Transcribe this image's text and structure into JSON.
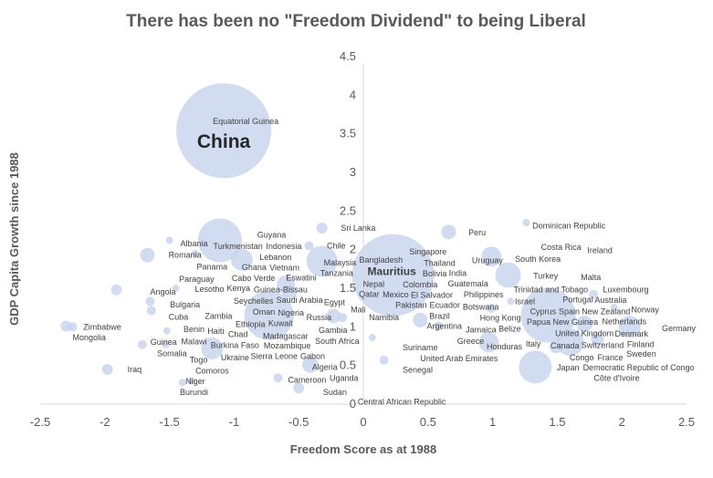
{
  "chart_data": {
    "type": "scatter",
    "subtype": "bubble",
    "title": "There has been no \"Freedom Dividend\" to being Liberal",
    "xlabel": "Freedom Score as at 1988",
    "ylabel": "GDP Capita Growth since 1988",
    "xlim": [
      -2.5,
      2.5
    ],
    "ylim": [
      0,
      4.5
    ],
    "xticks": [
      "-2.5",
      "-2",
      "-1.5",
      "-1",
      "-0.5",
      "0",
      "0.5",
      "1",
      "1.5",
      "2",
      "2.5"
    ],
    "yticks": [
      "0",
      "0.5",
      "1",
      "1.5",
      "2",
      "2.5",
      "3",
      "3.5",
      "4",
      "4.5"
    ],
    "grid": false,
    "colors": {
      "bubble": "#c5d3ee",
      "label": "#404040",
      "axis": "#d9d9d9"
    },
    "bubbles": [
      {
        "x": -1.08,
        "y": 3.54,
        "size": 2704
      },
      {
        "x": 0.23,
        "y": 1.67,
        "size": 2025
      },
      {
        "x": -1.11,
        "y": 2.12,
        "size": 576
      },
      {
        "x": -0.73,
        "y": 1.15,
        "size": 729
      },
      {
        "x": -0.32,
        "y": 1.85,
        "size": 289
      },
      {
        "x": 1.12,
        "y": 1.67,
        "size": 196
      },
      {
        "x": 1.33,
        "y": 0.48,
        "size": 324
      },
      {
        "x": 1.43,
        "y": 1.15,
        "size": 900
      },
      {
        "x": 1.6,
        "y": 0.8,
        "size": 225
      },
      {
        "x": 0.97,
        "y": 0.8,
        "size": 121
      },
      {
        "x": 0.66,
        "y": 2.23,
        "size": 64
      },
      {
        "x": 0.99,
        "y": 1.91,
        "size": 121
      },
      {
        "x": -1.67,
        "y": 1.93,
        "size": 64
      },
      {
        "x": -1.17,
        "y": 0.72,
        "size": 144
      },
      {
        "x": -0.32,
        "y": 2.28,
        "size": 36
      },
      {
        "x": -0.42,
        "y": 2.05,
        "size": 25
      },
      {
        "x": -1.91,
        "y": 1.48,
        "size": 36
      },
      {
        "x": -1.65,
        "y": 1.33,
        "size": 25
      },
      {
        "x": -1.64,
        "y": 1.21,
        "size": 25
      },
      {
        "x": -2.3,
        "y": 1.01,
        "size": 36
      },
      {
        "x": -2.25,
        "y": 1.0,
        "size": 25
      },
      {
        "x": -1.98,
        "y": 0.45,
        "size": 36
      },
      {
        "x": -1.71,
        "y": 0.77,
        "size": 25
      },
      {
        "x": -1.52,
        "y": 0.95,
        "size": 16
      },
      {
        "x": -1.53,
        "y": 0.77,
        "size": 16
      },
      {
        "x": -1.33,
        "y": 0.3,
        "size": 16
      },
      {
        "x": -1.4,
        "y": 0.28,
        "size": 16
      },
      {
        "x": -0.5,
        "y": 0.21,
        "size": 36
      },
      {
        "x": -0.66,
        "y": 0.34,
        "size": 25
      },
      {
        "x": -0.41,
        "y": 0.51,
        "size": 81
      },
      {
        "x": -0.57,
        "y": 1.45,
        "size": 64
      },
      {
        "x": -0.94,
        "y": 1.87,
        "size": 144
      },
      {
        "x": 0.44,
        "y": 1.09,
        "size": 64
      },
      {
        "x": 0.58,
        "y": 1.01,
        "size": 25
      },
      {
        "x": 0.16,
        "y": 0.57,
        "size": 25
      },
      {
        "x": 0.07,
        "y": 0.86,
        "size": 16
      },
      {
        "x": -0.16,
        "y": 1.12,
        "size": 25
      },
      {
        "x": 1.49,
        "y": 0.74,
        "size": 49
      },
      {
        "x": 1.81,
        "y": 0.84,
        "size": 49
      },
      {
        "x": 1.71,
        "y": 1.04,
        "size": 81
      },
      {
        "x": 1.78,
        "y": 1.42,
        "size": 25
      },
      {
        "x": 1.94,
        "y": 1.25,
        "size": 16
      },
      {
        "x": 1.26,
        "y": 2.35,
        "size": 16
      },
      {
        "x": 0.99,
        "y": 1.24,
        "size": 25
      },
      {
        "x": 2.06,
        "y": 1.0,
        "size": 144
      },
      {
        "x": 1.14,
        "y": 1.33,
        "size": 16
      },
      {
        "x": -0.23,
        "y": 1.14,
        "size": 64
      },
      {
        "x": -1.3,
        "y": 1.95,
        "size": 16
      },
      {
        "x": -1.5,
        "y": 2.12,
        "size": 16
      },
      {
        "x": -0.6,
        "y": 1.55,
        "size": 100
      },
      {
        "x": -1.45,
        "y": 1.5,
        "size": 16
      }
    ],
    "points": [
      {
        "label": "Equatorial Guinea",
        "x": -0.91,
        "y": 3.66
      },
      {
        "label": "China",
        "x": -1.08,
        "y": 3.4,
        "emphasis": "large"
      },
      {
        "label": "Albania",
        "x": -1.31,
        "y": 2.08
      },
      {
        "label": "Romania",
        "x": -1.38,
        "y": 1.93
      },
      {
        "label": "Panama",
        "x": -1.17,
        "y": 1.81
      },
      {
        "label": "Paraguay",
        "x": -1.29,
        "y": 1.69
      },
      {
        "label": "Angola",
        "x": -1.55,
        "y": 1.45
      },
      {
        "label": "Lesotho",
        "x": -1.19,
        "y": 1.49
      },
      {
        "label": "Bulgaria",
        "x": -1.38,
        "y": 1.29
      },
      {
        "label": "Cuba",
        "x": -1.43,
        "y": 1.2
      },
      {
        "label": "Zimbabwe",
        "x": -2.02,
        "y": 1.0
      },
      {
        "label": "Mongolia",
        "x": -2.12,
        "y": 0.9
      },
      {
        "label": "Benin",
        "x": -1.31,
        "y": 0.97
      },
      {
        "label": "Malawi",
        "x": -1.31,
        "y": 0.88
      },
      {
        "label": "Guinea",
        "x": -1.46,
        "y": 0.8
      },
      {
        "label": "Somalia",
        "x": -1.48,
        "y": 0.76
      },
      {
        "label": "Togo",
        "x": -1.33,
        "y": 0.57
      },
      {
        "label": "Iraq",
        "x": -1.77,
        "y": 0.45
      },
      {
        "label": "Comoros",
        "x": -1.17,
        "y": 0.43
      },
      {
        "label": "Niger",
        "x": -1.3,
        "y": 0.33
      },
      {
        "label": "Burundi",
        "x": -1.31,
        "y": 0.26
      },
      {
        "label": "Guyana",
        "x": -0.71,
        "y": 2.19
      },
      {
        "label": "Turkmenistan",
        "x": -0.97,
        "y": 2.08
      },
      {
        "label": "Indonesia",
        "x": -0.7,
        "y": 2.08
      },
      {
        "label": "Sri Lanka",
        "x": -0.04,
        "y": 2.28
      },
      {
        "label": "Chile",
        "x": -0.21,
        "y": 2.05
      },
      {
        "label": "Lebanon",
        "x": -0.68,
        "y": 1.9
      },
      {
        "label": "Vietnam",
        "x": -0.61,
        "y": 1.87
      },
      {
        "label": "Ghana",
        "x": -0.76,
        "y": 1.77
      },
      {
        "label": "Kenya",
        "x": -1.05,
        "y": 1.5
      },
      {
        "label": "Cabo Verde",
        "x": -0.85,
        "y": 1.49
      },
      {
        "label": "Guinea-Bissau",
        "x": -0.64,
        "y": 1.48
      },
      {
        "label": "Eswatini",
        "x": -0.48,
        "y": 1.53
      },
      {
        "label": "Tanzania",
        "x": -0.29,
        "y": 1.55
      },
      {
        "label": "Seychelles",
        "x": -0.85,
        "y": 1.37
      },
      {
        "label": "Saudi Arabia",
        "x": -0.55,
        "y": 1.38
      },
      {
        "label": "Egypt",
        "x": -0.28,
        "y": 1.35
      },
      {
        "label": "Nigeria",
        "x": -0.56,
        "y": 1.29
      },
      {
        "label": "Kuwait",
        "x": -0.64,
        "y": 1.22
      },
      {
        "label": "Oman",
        "x": -0.6,
        "y": 1.19
      },
      {
        "label": "Zambia",
        "x": -1.12,
        "y": 1.14
      },
      {
        "label": "Ethiopia",
        "x": -0.93,
        "y": 1.14
      },
      {
        "label": "Russia",
        "x": -0.4,
        "y": 1.12
      },
      {
        "label": "Chad",
        "x": -0.97,
        "y": 1.01
      },
      {
        "label": "Mali",
        "x": -0.04,
        "y": 1.22
      },
      {
        "label": "Burkina Faso",
        "x": -1.05,
        "y": 0.83
      },
      {
        "label": "Haiti",
        "x": -1.17,
        "y": 0.8
      },
      {
        "label": "Madagascar",
        "x": -0.8,
        "y": 0.88
      },
      {
        "label": "Mozambique",
        "x": -0.73,
        "y": 0.86
      },
      {
        "label": "Sierra Leone",
        "x": -0.69,
        "y": 0.76
      },
      {
        "label": "Ukraine",
        "x": -0.88,
        "y": 0.71
      },
      {
        "label": "South Africa",
        "x": -0.4,
        "y": 0.85
      },
      {
        "label": "Gambia",
        "x": -0.15,
        "y": 0.85
      },
      {
        "label": "Gabon",
        "x": -0.42,
        "y": 0.62
      },
      {
        "label": "Algeria",
        "x": -0.27,
        "y": 0.55
      },
      {
        "label": "Uganda",
        "x": -0.15,
        "y": 0.48
      },
      {
        "label": "Cameroon",
        "x": -0.35,
        "y": 0.31
      },
      {
        "label": "Sudan",
        "x": -0.22,
        "y": 0.19
      },
      {
        "label": "Central African Republic",
        "x": 0.1,
        "y": 0.03
      },
      {
        "label": "Peru",
        "x": 0.88,
        "y": 2.22
      },
      {
        "label": "Singapore",
        "x": 0.5,
        "y": 1.97
      },
      {
        "label": "Thailand",
        "x": 0.59,
        "y": 1.86
      },
      {
        "label": "Uruguay",
        "x": 0.96,
        "y": 1.86
      },
      {
        "label": "Bangladesh",
        "x": 0.08,
        "y": 1.83
      },
      {
        "label": "India",
        "x": 0.73,
        "y": 1.73
      },
      {
        "label": "Mauritius",
        "x": 0.22,
        "y": 1.72,
        "emphasis": "medium"
      },
      {
        "label": "Malaysia",
        "x": -0.04,
        "y": 1.69
      },
      {
        "label": "Nepal",
        "x": 0.08,
        "y": 1.66
      },
      {
        "label": "Colombia",
        "x": 0.44,
        "y": 1.69
      },
      {
        "label": "Qatar",
        "x": -0.04,
        "y": 1.6
      },
      {
        "label": "El Salvador",
        "x": 0.53,
        "y": 1.59
      },
      {
        "label": "Bolivia",
        "x": 0.58,
        "y": 1.62
      },
      {
        "label": "Guatemala",
        "x": 0.81,
        "y": 1.63
      },
      {
        "label": "Ecuador",
        "x": 0.63,
        "y": 1.53
      },
      {
        "label": "Philippines",
        "x": 0.93,
        "y": 1.56
      },
      {
        "label": "Mexico",
        "x": 0.25,
        "y": 1.45
      },
      {
        "label": "Pakistan",
        "x": 0.37,
        "y": 1.35
      },
      {
        "label": "Brazil",
        "x": 0.59,
        "y": 1.35
      },
      {
        "label": "Botswana",
        "x": 0.88,
        "y": 1.33
      },
      {
        "label": "Hong Kong",
        "x": 1.06,
        "y": 1.33
      },
      {
        "label": "Israel",
        "x": 1.25,
        "y": 1.33
      },
      {
        "label": "Jamaica",
        "x": 0.91,
        "y": 1.21
      },
      {
        "label": "Namibia",
        "x": 0.16,
        "y": 1.16
      },
      {
        "label": "Argentina",
        "x": 0.74,
        "y": 1.08
      },
      {
        "label": "Greece",
        "x": 0.83,
        "y": 0.99
      },
      {
        "label": "Belize",
        "x": 1.02,
        "y": 1.01
      },
      {
        "label": "Suriname",
        "x": 0.44,
        "y": 0.73
      },
      {
        "label": "United Arab Emirates",
        "x": 0.74,
        "y": 0.66
      },
      {
        "label": "Honduras",
        "x": 0.95,
        "y": 0.67
      },
      {
        "label": "Senegal",
        "x": 0.42,
        "y": 0.55
      },
      {
        "label": "Dominican Republic",
        "x": 1.59,
        "y": 2.31
      },
      {
        "label": "Costa Rica",
        "x": 1.53,
        "y": 2.03
      },
      {
        "label": "Ireland",
        "x": 1.83,
        "y": 1.99
      },
      {
        "label": "South Korea",
        "x": 1.35,
        "y": 1.88
      },
      {
        "label": "Turkey",
        "x": 1.41,
        "y": 1.66
      },
      {
        "label": "Malta",
        "x": 1.76,
        "y": 1.64
      },
      {
        "label": "Trinidad and Tobago",
        "x": 1.45,
        "y": 1.52
      },
      {
        "label": "Luxembourg",
        "x": 2.03,
        "y": 1.48
      },
      {
        "label": "Portugal",
        "x": 1.66,
        "y": 1.42
      },
      {
        "label": "Australia",
        "x": 1.8,
        "y": 1.38
      },
      {
        "label": "Cyprus",
        "x": 1.39,
        "y": 1.27
      },
      {
        "label": "Norway",
        "x": 2.18,
        "y": 1.22
      },
      {
        "label": "Papua New Guinea",
        "x": 1.54,
        "y": 1.17
      },
      {
        "label": "Spain",
        "x": 1.48,
        "y": 1.13
      },
      {
        "label": "New Zealand",
        "x": 1.82,
        "y": 1.09
      },
      {
        "label": "Netherlands",
        "x": 1.99,
        "y": 1.07
      },
      {
        "label": "United Kingdom",
        "x": 1.71,
        "y": 0.95
      },
      {
        "label": "Denmark",
        "x": 1.99,
        "y": 0.98
      },
      {
        "label": "Switzerland",
        "x": 1.85,
        "y": 0.94
      },
      {
        "label": "Germany",
        "x": 2.44,
        "y": 0.98
      },
      {
        "label": "Canada",
        "x": 1.7,
        "y": 0.9
      },
      {
        "label": "France",
        "x": 1.91,
        "y": 0.85
      },
      {
        "label": "Finland",
        "x": 2.06,
        "y": 0.81
      },
      {
        "label": "Sweden",
        "x": 2.15,
        "y": 0.79
      },
      {
        "label": "Italy",
        "x": 1.23,
        "y": 0.78
      },
      {
        "label": "Congo",
        "x": 1.83,
        "y": 0.78
      },
      {
        "label": "Democratic Republic of Congo",
        "x": 2.13,
        "y": 0.72
      },
      {
        "label": "Côte d'Ivoire",
        "x": 1.96,
        "y": 0.62
      },
      {
        "label": "Japan",
        "x": 1.64,
        "y": 0.47
      }
    ]
  }
}
